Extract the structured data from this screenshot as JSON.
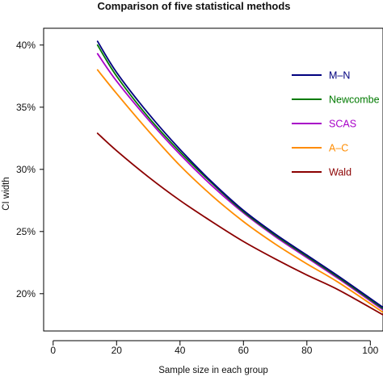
{
  "chart_data": {
    "type": "line",
    "title": "Comparison of five statistical methods",
    "xlabel": "Sample size in each group",
    "ylabel": "CI width",
    "xlim": [
      -3,
      104
    ],
    "ylim": [
      0.17,
      0.4135
    ],
    "x_ticks": [
      0,
      20,
      40,
      60,
      80,
      100
    ],
    "x_tick_labels": [
      "0",
      "20",
      "40",
      "60",
      "80",
      "100"
    ],
    "y_ticks": [
      0.2,
      0.25,
      0.3,
      0.35,
      0.4
    ],
    "y_tick_labels": [
      "20%",
      "25%",
      "30%",
      "35%",
      "40%"
    ],
    "grid": false,
    "legend_position": "right",
    "series": [
      {
        "name": "M–N",
        "color": "#00007f",
        "x": [
          14,
          20,
          30,
          40,
          50,
          60,
          70,
          80,
          90,
          104
        ],
        "y": [
          0.403,
          0.378,
          0.345,
          0.316,
          0.29,
          0.267,
          0.248,
          0.231,
          0.214,
          0.189
        ]
      },
      {
        "name": "Newcombe",
        "color": "#007a00",
        "x": [
          14,
          20,
          30,
          40,
          50,
          60,
          70,
          80,
          90,
          104
        ],
        "y": [
          0.4,
          0.375,
          0.342,
          0.314,
          0.289,
          0.266,
          0.247,
          0.23,
          0.213,
          0.188
        ]
      },
      {
        "name": "SCAS",
        "color": "#a800c8",
        "x": [
          14,
          20,
          30,
          40,
          50,
          60,
          70,
          80,
          90,
          104
        ],
        "y": [
          0.393,
          0.371,
          0.34,
          0.312,
          0.287,
          0.265,
          0.246,
          0.229,
          0.212,
          0.187
        ]
      },
      {
        "name": "A–C",
        "color": "#ff8c00",
        "x": [
          14,
          20,
          30,
          40,
          50,
          60,
          70,
          80,
          90,
          104
        ],
        "y": [
          0.38,
          0.361,
          0.331,
          0.303,
          0.279,
          0.258,
          0.24,
          0.224,
          0.209,
          0.185
        ]
      },
      {
        "name": "Wald",
        "color": "#8b0000",
        "x": [
          14,
          20,
          30,
          40,
          50,
          60,
          70,
          80,
          90,
          104
        ],
        "y": [
          0.329,
          0.315,
          0.294,
          0.275,
          0.258,
          0.242,
          0.228,
          0.215,
          0.203,
          0.183
        ]
      }
    ]
  }
}
